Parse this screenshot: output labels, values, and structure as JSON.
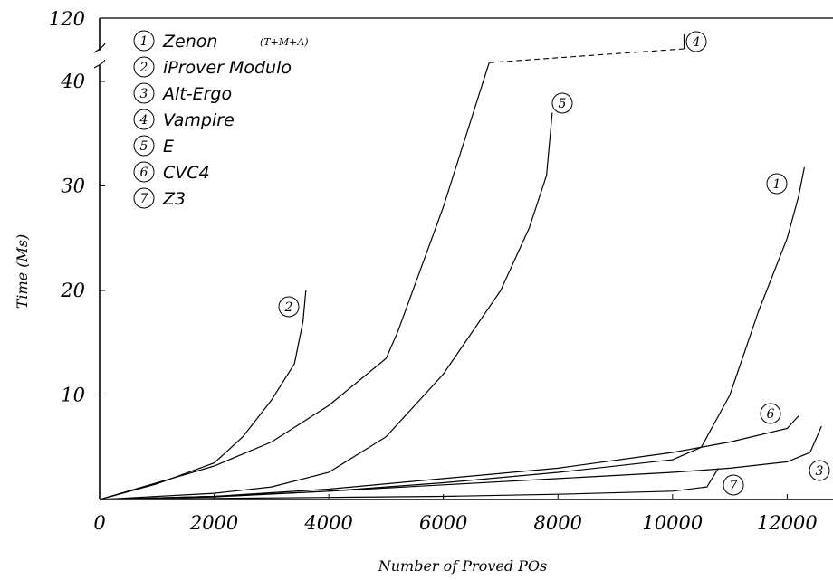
{
  "chart_data": {
    "type": "line",
    "title": "",
    "xlabel": "Number of Proved POs",
    "ylabel": "Time (Ms)",
    "xlim": [
      0,
      12800
    ],
    "ylim": [
      0,
      42
    ],
    "broken_axis_top_label": "120",
    "x_ticks": [
      "0",
      "2000",
      "4000",
      "6000",
      "8000",
      "10000",
      "12000"
    ],
    "y_ticks": [
      "10",
      "20",
      "30",
      "40"
    ],
    "grid": false,
    "legend_position": "top-left",
    "series": [
      {
        "id": "1",
        "name": "Zenon",
        "qualifier": "(T+M+A)",
        "points": [
          [
            0,
            0
          ],
          [
            2000,
            0.25
          ],
          [
            4000,
            0.8
          ],
          [
            6000,
            1.6
          ],
          [
            8000,
            2.6
          ],
          [
            10000,
            3.8
          ],
          [
            10500,
            5
          ],
          [
            11000,
            10
          ],
          [
            11500,
            18
          ],
          [
            12000,
            25
          ],
          [
            12200,
            29
          ],
          [
            12300,
            31.8
          ]
        ]
      },
      {
        "id": "2",
        "name": "iProver Modulo",
        "points": [
          [
            0,
            0
          ],
          [
            1000,
            1.5
          ],
          [
            2000,
            3.5
          ],
          [
            2500,
            6
          ],
          [
            3000,
            9.5
          ],
          [
            3400,
            13
          ],
          [
            3550,
            17
          ],
          [
            3600,
            20
          ]
        ]
      },
      {
        "id": "3",
        "name": "Alt-Ergo",
        "points": [
          [
            0,
            0
          ],
          [
            2000,
            0.3
          ],
          [
            4000,
            0.8
          ],
          [
            6000,
            1.4
          ],
          [
            8000,
            2
          ],
          [
            10000,
            2.6
          ],
          [
            11000,
            3
          ],
          [
            12000,
            3.6
          ],
          [
            12400,
            4.5
          ],
          [
            12600,
            7
          ]
        ]
      },
      {
        "id": "4",
        "name": "Vampire",
        "points": [
          [
            0,
            0
          ],
          [
            1500,
            2.4
          ],
          [
            2000,
            3.2
          ],
          [
            3000,
            5.5
          ],
          [
            4000,
            9
          ],
          [
            5000,
            13.5
          ],
          [
            5200,
            16
          ],
          [
            6000,
            28
          ],
          [
            6800,
            41.8
          ]
        ],
        "break_to": [
          10200,
          43
        ]
      },
      {
        "id": "5",
        "name": "E",
        "points": [
          [
            0,
            0
          ],
          [
            2000,
            0.6
          ],
          [
            3000,
            1.2
          ],
          [
            4000,
            2.6
          ],
          [
            5000,
            6
          ],
          [
            6000,
            12
          ],
          [
            7000,
            20
          ],
          [
            7500,
            26
          ],
          [
            7800,
            31
          ],
          [
            7900,
            37
          ]
        ]
      },
      {
        "id": "6",
        "name": "CVC4",
        "points": [
          [
            0,
            0
          ],
          [
            2000,
            0.3
          ],
          [
            4000,
            1
          ],
          [
            6000,
            2
          ],
          [
            8000,
            3
          ],
          [
            10000,
            4.5
          ],
          [
            11000,
            5.5
          ],
          [
            12000,
            6.8
          ],
          [
            12200,
            8
          ]
        ]
      },
      {
        "id": "7",
        "name": "Z3",
        "points": [
          [
            0,
            0
          ],
          [
            2000,
            0.1
          ],
          [
            4000,
            0.2
          ],
          [
            6000,
            0.3
          ],
          [
            8000,
            0.5
          ],
          [
            10000,
            0.8
          ],
          [
            10600,
            1.2
          ],
          [
            10800,
            3
          ]
        ]
      }
    ],
    "curve_labels": [
      "2",
      "4",
      "5",
      "1",
      "6",
      "3",
      "7"
    ]
  }
}
